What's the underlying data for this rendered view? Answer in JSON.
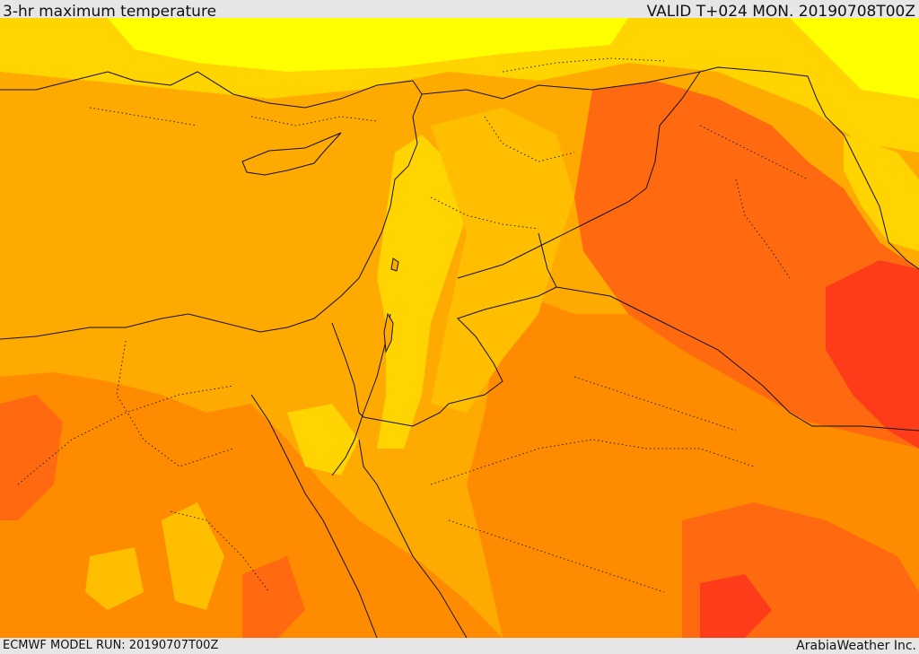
{
  "header": {
    "title": "3-hr maximum temperature",
    "valid": "VALID T+024 MON. 20190708T00Z"
  },
  "footer": {
    "model_run": "ECMWF MODEL RUN: 20190707T00Z",
    "credit": "ArabiaWeather Inc."
  },
  "colors": {
    "sea": "#ffaa00",
    "warm_orange": "#ff8c00",
    "hot_orange": "#ff6a10",
    "very_hot": "#ff3c1a",
    "cool_yellow": "#ffd400",
    "pale_yellow": "#ffff00",
    "border_line": "#111111"
  }
}
